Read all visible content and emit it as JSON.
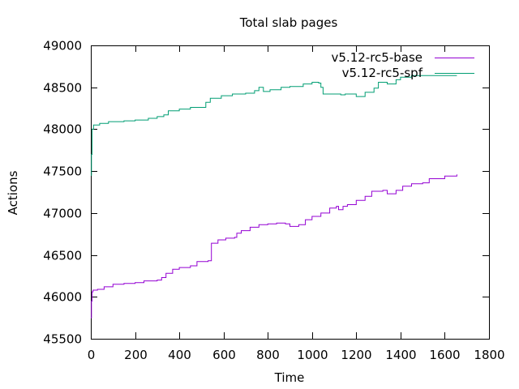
{
  "chart_data": {
    "type": "line",
    "title": "Total slab pages",
    "xlabel": "Time",
    "ylabel": "Actions",
    "xlim": [
      0,
      1800
    ],
    "ylim": [
      45500,
      49000
    ],
    "xticks": [
      "0",
      "200",
      "400",
      "600",
      "800",
      "1000",
      "1200",
      "1400",
      "1600",
      "1800"
    ],
    "yticks": [
      "45500",
      "46000",
      "46500",
      "47000",
      "47500",
      "48000",
      "48500",
      "49000"
    ],
    "grid": false,
    "legend_position": "top-right",
    "series": [
      {
        "name": "v5.12-rc5-base",
        "color": "#9400d3",
        "points": [
          [
            0,
            45750
          ],
          [
            3,
            45950
          ],
          [
            6,
            46060
          ],
          [
            10,
            46080
          ],
          [
            30,
            46090
          ],
          [
            60,
            46120
          ],
          [
            100,
            46150
          ],
          [
            150,
            46160
          ],
          [
            200,
            46170
          ],
          [
            240,
            46190
          ],
          [
            300,
            46200
          ],
          [
            320,
            46230
          ],
          [
            340,
            46280
          ],
          [
            370,
            46330
          ],
          [
            400,
            46350
          ],
          [
            450,
            46370
          ],
          [
            480,
            46420
          ],
          [
            530,
            46430
          ],
          [
            545,
            46640
          ],
          [
            575,
            46680
          ],
          [
            610,
            46700
          ],
          [
            650,
            46710
          ],
          [
            660,
            46760
          ],
          [
            680,
            46790
          ],
          [
            720,
            46830
          ],
          [
            760,
            46860
          ],
          [
            800,
            46870
          ],
          [
            840,
            46880
          ],
          [
            880,
            46870
          ],
          [
            900,
            46840
          ],
          [
            940,
            46860
          ],
          [
            970,
            46920
          ],
          [
            1000,
            46960
          ],
          [
            1040,
            47000
          ],
          [
            1080,
            47060
          ],
          [
            1110,
            47080
          ],
          [
            1120,
            47040
          ],
          [
            1140,
            47080
          ],
          [
            1160,
            47100
          ],
          [
            1200,
            47150
          ],
          [
            1240,
            47200
          ],
          [
            1270,
            47260
          ],
          [
            1320,
            47270
          ],
          [
            1340,
            47230
          ],
          [
            1380,
            47270
          ],
          [
            1410,
            47320
          ],
          [
            1450,
            47350
          ],
          [
            1500,
            47360
          ],
          [
            1530,
            47410
          ],
          [
            1600,
            47440
          ],
          [
            1655,
            47460
          ]
        ]
      },
      {
        "name": "v5.12-rc5-spf",
        "color": "#009e73",
        "points": [
          [
            0,
            47450
          ],
          [
            3,
            47700
          ],
          [
            6,
            48000
          ],
          [
            12,
            48050
          ],
          [
            40,
            48070
          ],
          [
            80,
            48090
          ],
          [
            150,
            48100
          ],
          [
            200,
            48110
          ],
          [
            260,
            48130
          ],
          [
            300,
            48150
          ],
          [
            330,
            48170
          ],
          [
            350,
            48220
          ],
          [
            400,
            48240
          ],
          [
            450,
            48260
          ],
          [
            520,
            48320
          ],
          [
            540,
            48370
          ],
          [
            590,
            48400
          ],
          [
            640,
            48420
          ],
          [
            700,
            48430
          ],
          [
            740,
            48460
          ],
          [
            760,
            48500
          ],
          [
            780,
            48450
          ],
          [
            810,
            48470
          ],
          [
            860,
            48500
          ],
          [
            900,
            48510
          ],
          [
            960,
            48540
          ],
          [
            1000,
            48560
          ],
          [
            1030,
            48550
          ],
          [
            1040,
            48500
          ],
          [
            1050,
            48420
          ],
          [
            1080,
            48420
          ],
          [
            1130,
            48410
          ],
          [
            1150,
            48420
          ],
          [
            1200,
            48390
          ],
          [
            1240,
            48440
          ],
          [
            1280,
            48490
          ],
          [
            1300,
            48560
          ],
          [
            1340,
            48540
          ],
          [
            1380,
            48590
          ],
          [
            1400,
            48620
          ],
          [
            1450,
            48640
          ],
          [
            1655,
            48640
          ]
        ]
      }
    ]
  }
}
